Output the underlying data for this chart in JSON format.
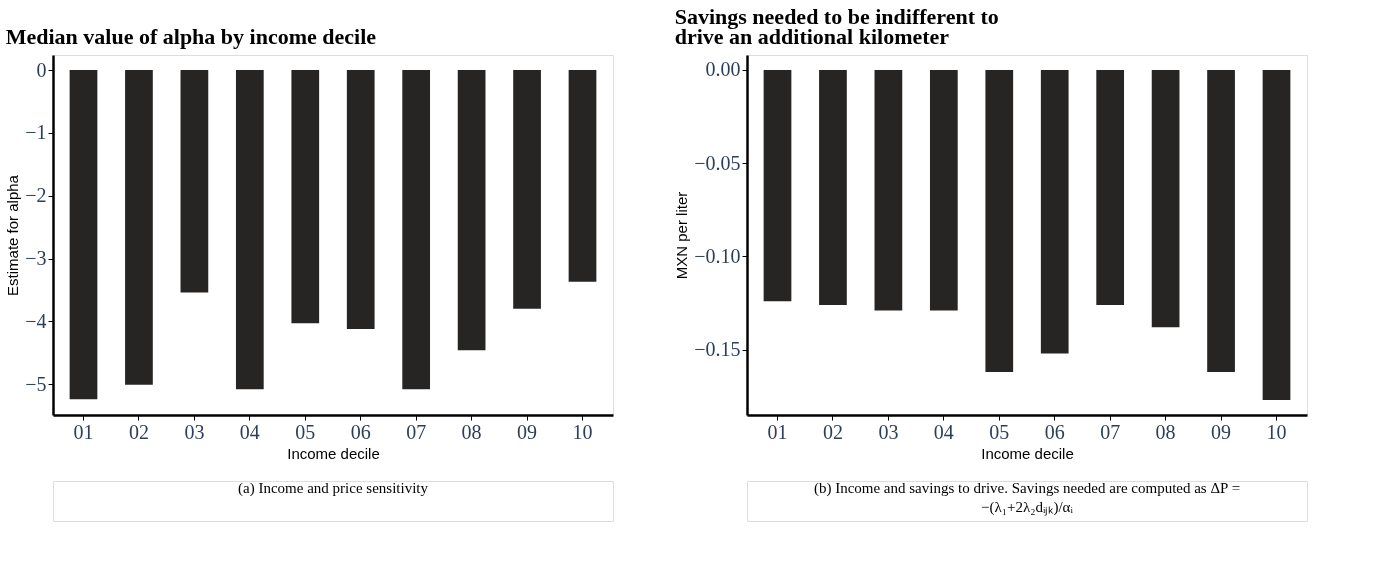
{
  "chart_data": [
    {
      "type": "bar",
      "title": "Median value of alpha by income decile",
      "xlabel": "Income decile",
      "ylabel": "Estimate for alpha",
      "categories": [
        "01",
        "02",
        "03",
        "04",
        "05",
        "06",
        "07",
        "08",
        "09",
        "10"
      ],
      "values": [
        -5.24,
        -5.01,
        -3.54,
        -5.08,
        -4.03,
        -4.12,
        -5.08,
        -4.46,
        -3.8,
        -3.37
      ],
      "color": "#262523",
      "ylim": [
        -5.49,
        0.24
      ],
      "yticks": [
        {
          "value": -5,
          "label": "−5"
        },
        {
          "value": -4,
          "label": "−4"
        },
        {
          "value": -3,
          "label": "−3"
        },
        {
          "value": -2,
          "label": "−2"
        },
        {
          "value": -1,
          "label": "−1"
        },
        0
      ],
      "grid": false,
      "annotations": [
        "(a) Income and price sensitivity"
      ]
    },
    {
      "type": "bar",
      "title": "Savings needed to be indifferent to drive an additional kilometer",
      "xlabel": "Income decile",
      "ylabel": "MXN per liter",
      "categories": [
        "01",
        "02",
        "03",
        "04",
        "05",
        "06",
        "07",
        "08",
        "09",
        "10"
      ],
      "values": [
        -0.124,
        -0.126,
        -0.129,
        -0.129,
        -0.162,
        -0.152,
        -0.126,
        -0.138,
        -0.162,
        -0.177
      ],
      "color": "#262523",
      "ylim": [
        -0.185,
        0.008
      ],
      "yticks": [
        {
          "value": -0.15,
          "label": "−0.15"
        },
        {
          "value": -0.1,
          "label": "−0.10"
        },
        {
          "value": -0.05,
          "label": "−0.05"
        },
        {
          "value": 0,
          "label": "0.00"
        }
      ],
      "grid": false,
      "annotations": [
        "(b) Income and savings to drive. Savings needed are computed as ΔP = −(λ₁+2λ₂dᵢⱼₖ)/αᵢ"
      ]
    }
  ]
}
